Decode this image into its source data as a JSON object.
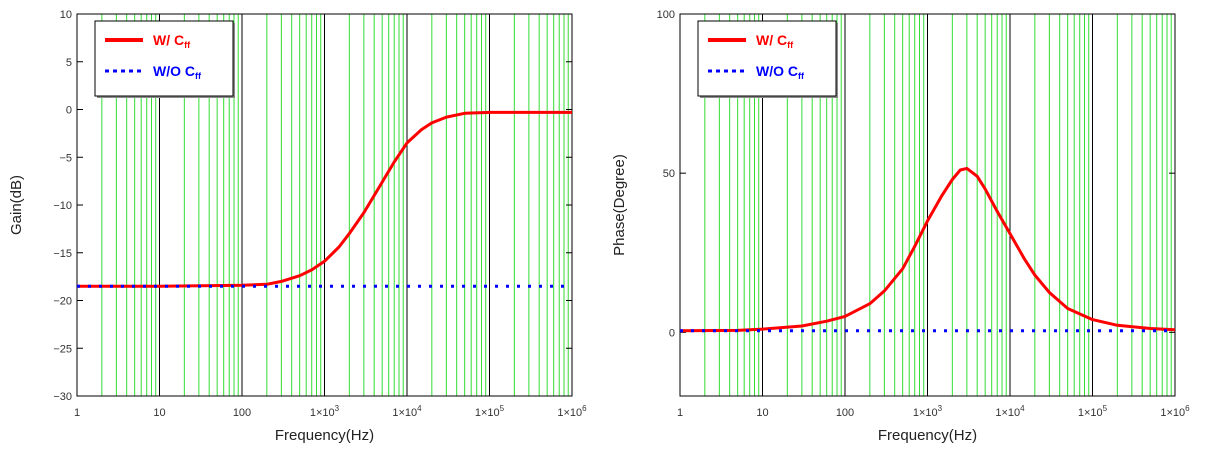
{
  "chart_data": [
    {
      "type": "line",
      "xscale": "log",
      "xlim": [
        1,
        1000000
      ],
      "ylim": [
        -30,
        10
      ],
      "xlabel": "Frequency(Hz)",
      "ylabel": "Gain(dB)",
      "grid": true,
      "legend_position": "top-left",
      "x_ticks": [
        {
          "value": 1,
          "label": "1"
        },
        {
          "value": 10,
          "label": "10"
        },
        {
          "value": 100,
          "label": "100"
        },
        {
          "value": 1000,
          "label": "1×10",
          "sup": "3"
        },
        {
          "value": 10000,
          "label": "1×10",
          "sup": "4"
        },
        {
          "value": 100000,
          "label": "1×10",
          "sup": "5"
        },
        {
          "value": 1000000,
          "label": "1×10",
          "sup": "6"
        }
      ],
      "y_ticks": [
        {
          "value": 10,
          "label": "10"
        },
        {
          "value": 5,
          "label": "5"
        },
        {
          "value": 0,
          "label": "0"
        },
        {
          "value": -5,
          "label": "−5"
        },
        {
          "value": -10,
          "label": "−10"
        },
        {
          "value": -15,
          "label": "−15"
        },
        {
          "value": -20,
          "label": "−20"
        },
        {
          "value": -25,
          "label": "−25"
        },
        {
          "value": -30,
          "label": "−30"
        }
      ],
      "series": [
        {
          "name": "W/ C",
          "name_sub": "ff",
          "color": "#ff0000",
          "dash": "solid",
          "x": [
            1,
            10,
            100,
            200,
            300,
            500,
            700,
            1000,
            1500,
            2000,
            3000,
            5000,
            7000,
            10000,
            15000,
            20000,
            30000,
            50000,
            100000,
            300000,
            1000000
          ],
          "y": [
            -18.5,
            -18.5,
            -18.4,
            -18.3,
            -18.0,
            -17.4,
            -16.8,
            -15.9,
            -14.4,
            -13.0,
            -10.8,
            -7.6,
            -5.5,
            -3.5,
            -2.1,
            -1.4,
            -0.8,
            -0.4,
            -0.3,
            -0.3,
            -0.3
          ]
        },
        {
          "name": "W/O C",
          "name_sub": "ff",
          "color": "#0000ff",
          "dash": "dotted",
          "x": [
            1,
            1000000
          ],
          "y": [
            -18.5,
            -18.5
          ]
        }
      ]
    },
    {
      "type": "line",
      "xscale": "log",
      "xlim": [
        1,
        1000000
      ],
      "ylim": [
        -20,
        100
      ],
      "xlabel": "Frequency(Hz)",
      "ylabel": "Phase(Degree)",
      "grid": true,
      "legend_position": "top-left",
      "x_ticks": [
        {
          "value": 1,
          "label": "1"
        },
        {
          "value": 10,
          "label": "10"
        },
        {
          "value": 100,
          "label": "100"
        },
        {
          "value": 1000,
          "label": "1×10",
          "sup": "3"
        },
        {
          "value": 10000,
          "label": "1×10",
          "sup": "4"
        },
        {
          "value": 100000,
          "label": "1×10",
          "sup": "5"
        },
        {
          "value": 1000000,
          "label": "1×10",
          "sup": "6"
        }
      ],
      "y_ticks": [
        {
          "value": 100,
          "label": "100"
        },
        {
          "value": 50,
          "label": "50"
        },
        {
          "value": 0,
          "label": "0"
        }
      ],
      "series": [
        {
          "name": "W/ C",
          "name_sub": "ff",
          "color": "#ff0000",
          "dash": "solid",
          "x": [
            1,
            5,
            10,
            30,
            60,
            100,
            200,
            300,
            500,
            700,
            1000,
            1500,
            2000,
            2500,
            3000,
            4000,
            5000,
            7000,
            10000,
            15000,
            20000,
            30000,
            50000,
            100000,
            200000,
            500000,
            1000000
          ],
          "y": [
            0.5,
            0.6,
            1,
            2,
            3.5,
            5,
            9,
            13,
            20,
            27,
            35,
            43,
            48,
            51,
            51.5,
            49,
            45,
            38,
            31,
            23,
            18,
            12.5,
            7.5,
            4,
            2.2,
            1.2,
            0.8
          ]
        },
        {
          "name": "W/O C",
          "name_sub": "ff",
          "color": "#0000ff",
          "dash": "dotted",
          "x": [
            1,
            1000000
          ],
          "y": [
            0.5,
            0.5
          ]
        }
      ]
    }
  ]
}
